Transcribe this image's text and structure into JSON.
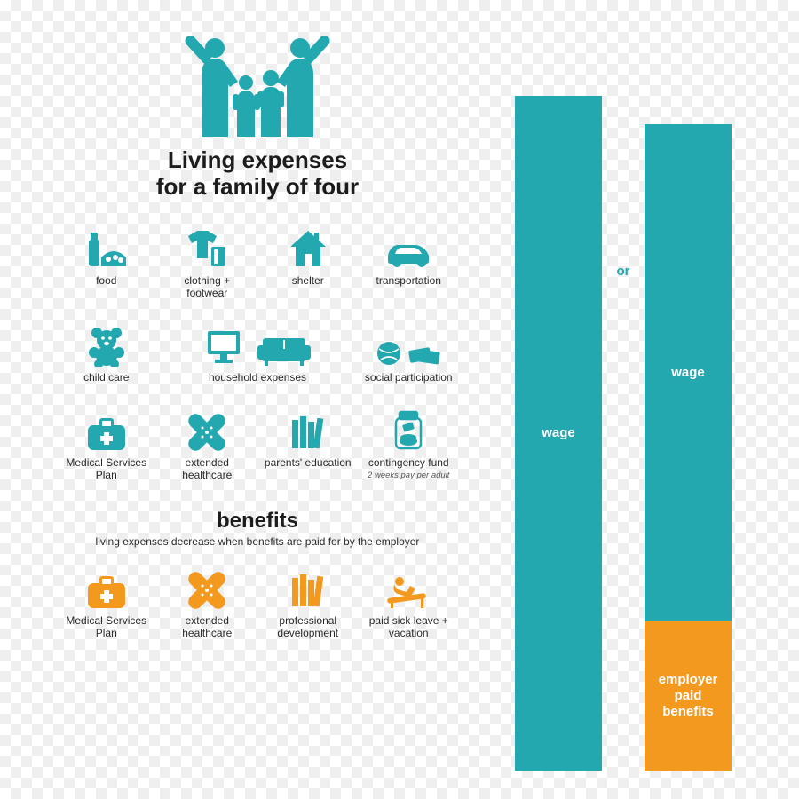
{
  "colors": {
    "teal": "#23a8b0",
    "orange": "#f39a1e",
    "text": "#1c1c1c"
  },
  "title_line1": "Living expenses",
  "title_line2": "for a family of four",
  "expenses": {
    "food": "food",
    "clothing": "clothing + footwear",
    "shelter": "shelter",
    "transport": "transportation",
    "childcare": "child care",
    "household": "household expenses",
    "social": "social participation",
    "msp": "Medical Services Plan",
    "ext_health": "extended healthcare",
    "parents_edu": "parents' education",
    "contingency": "contingency fund",
    "contingency_sub": "2 weeks pay per adult"
  },
  "benefits": {
    "title": "benefits",
    "subtitle": "living expenses decrease when benefits are paid for by the employer",
    "msp": "Medical Services Plan",
    "ext_health": "extended healthcare",
    "prof_dev": "professional development",
    "sick_leave": "paid sick leave + vacation"
  },
  "bars": {
    "bar1_height": 760,
    "bar1_wage_label": "wage",
    "or_label": "or",
    "or_color": "#23a8b0",
    "bar2_wage_label": "wage",
    "bar2_wage_height": 560,
    "bar2_benefits_label": "employer paid benefits",
    "bar2_benefits_height": 168
  }
}
